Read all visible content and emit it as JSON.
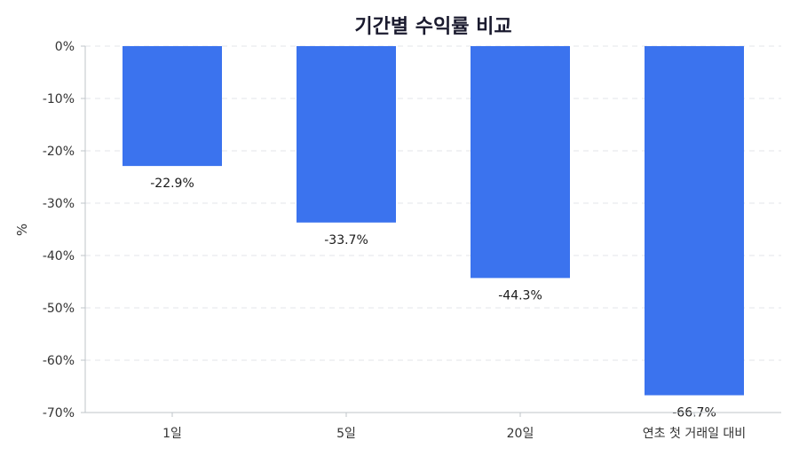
{
  "chart_data": {
    "type": "bar",
    "title": "기간별 수익률 비교",
    "ylabel": "%",
    "xlabel": "",
    "categories": [
      "1일",
      "5일",
      "20일",
      "연초 첫 거래일 대비"
    ],
    "values": [
      -22.9,
      -33.7,
      -44.3,
      -66.7
    ],
    "data_labels": [
      "-22.9%",
      "-33.7%",
      "-44.3%",
      "-66.7%"
    ],
    "ylim": [
      -70,
      0
    ],
    "yticks": [
      0,
      -10,
      -20,
      -30,
      -40,
      -50,
      -60,
      -70
    ],
    "ytick_labels": [
      "0%",
      "-10%",
      "-20%",
      "-30%",
      "-40%",
      "-50%",
      "-60%",
      "-70%"
    ],
    "grid": true,
    "bar_color": "#3b73ee"
  }
}
